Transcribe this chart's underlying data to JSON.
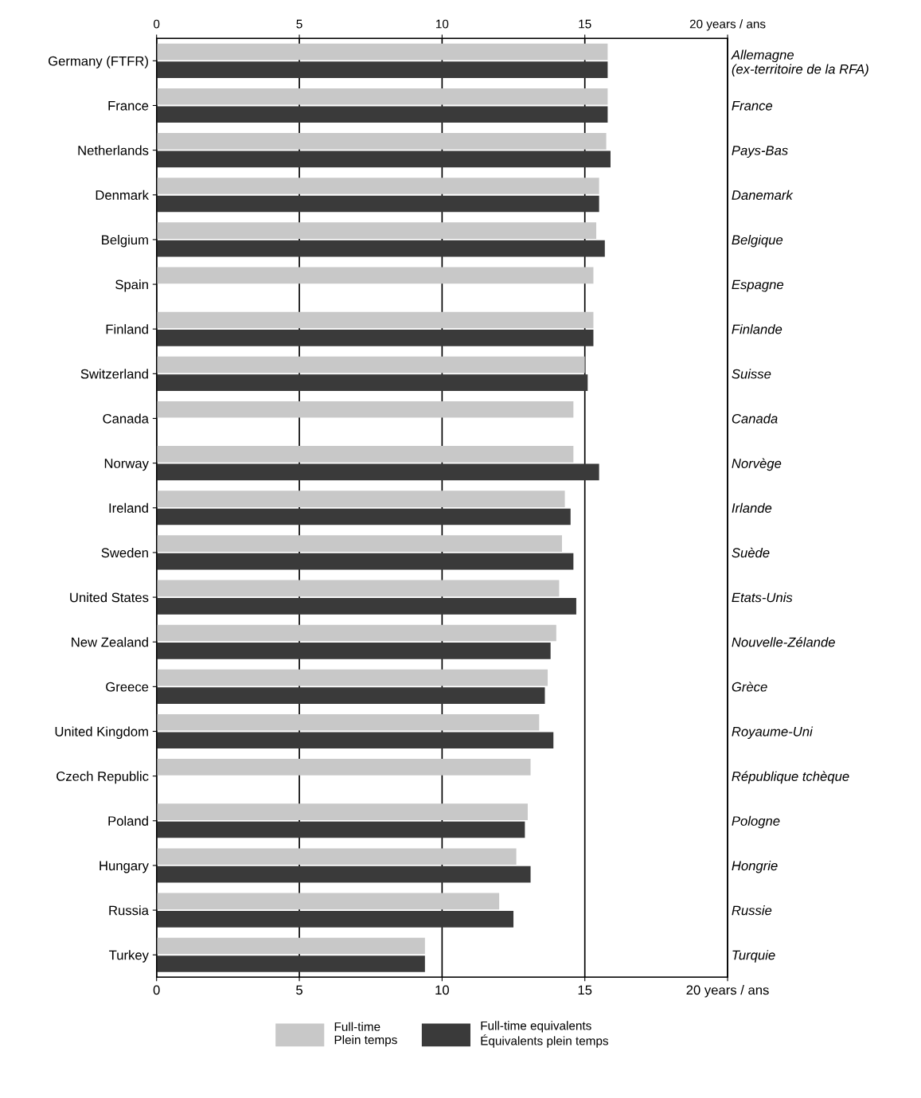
{
  "chart_data": {
    "type": "bar",
    "orientation": "horizontal",
    "categories": [
      "Germany (FTFR)",
      "France",
      "Netherlands",
      "Denmark",
      "Belgium",
      "Spain",
      "Finland",
      "Switzerland",
      "Canada",
      "Norway",
      "Ireland",
      "Sweden",
      "United States",
      "New Zealand",
      "Greece",
      "United Kingdom",
      "Czech Republic",
      "Poland",
      "Hungary",
      "Russia",
      "Turkey"
    ],
    "y2_categories": [
      "Allemagne\n(ex-territoire de la RFA)",
      "France",
      "Pays-Bas",
      "Danemark",
      "Belgique",
      "Espagne",
      "Finlande",
      "Suisse",
      "Canada",
      "Norvège",
      "Irlande",
      "Suède",
      "Etats-Unis",
      "Nouvelle-Zélande",
      "Grèce",
      "Royaume-Uni",
      "République tchèque",
      "Pologne",
      "Hongrie",
      "Russie",
      "Turquie"
    ],
    "series": [
      {
        "name": "Full-time\nPlein temps",
        "color": "#c8c8c8",
        "values": [
          15.8,
          15.8,
          15.75,
          15.5,
          15.4,
          15.3,
          15.3,
          15.0,
          14.6,
          14.6,
          14.3,
          14.2,
          14.1,
          14.0,
          13.7,
          13.4,
          13.1,
          13.0,
          12.6,
          12.0,
          9.4
        ]
      },
      {
        "name": "Full-time equivalents\nÉquivalents plein temps",
        "color": "#3a3a3a",
        "values": [
          15.8,
          15.8,
          15.9,
          15.5,
          15.7,
          null,
          15.3,
          15.1,
          null,
          15.5,
          14.5,
          14.6,
          14.7,
          13.8,
          13.6,
          13.9,
          null,
          12.9,
          13.1,
          12.5,
          9.4
        ]
      }
    ],
    "xlim": [
      0,
      20
    ],
    "xticks": [
      0,
      5,
      10,
      15,
      {
        "value": 20,
        "label": "20 years / ans"
      }
    ],
    "x2lim": [
      0,
      20
    ],
    "x2ticks": [
      0,
      5,
      10,
      15,
      {
        "value": 20,
        "label": "20 years / ans"
      }
    ],
    "grid": "x",
    "legend": "bottom"
  }
}
